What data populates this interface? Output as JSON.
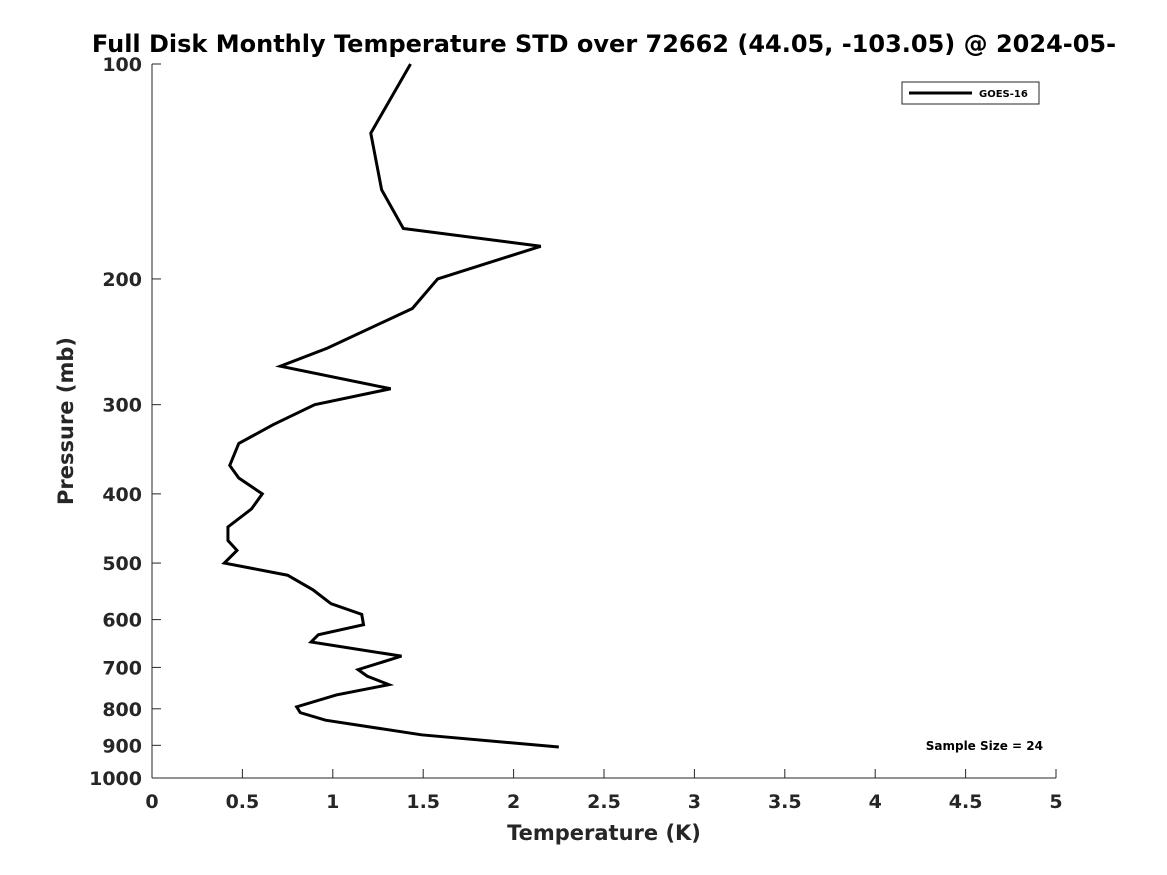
{
  "chart_data": {
    "type": "line",
    "title": "Full Disk Monthly Temperature STD over 72662 (44.05, -103.05) @ 2024-05-",
    "xlabel": "Temperature (K)",
    "ylabel": "Pressure (mb)",
    "xlim": [
      0,
      5
    ],
    "ylim": [
      100,
      1000
    ],
    "y_scale": "log",
    "y_reversed": true,
    "x_ticks": [
      0,
      0.5,
      1,
      1.5,
      2,
      2.5,
      3,
      3.5,
      4,
      4.5,
      5
    ],
    "x_tick_labels": [
      "0",
      "0.5",
      "1",
      "1.5",
      "2",
      "2.5",
      "3",
      "3.5",
      "4",
      "4.5",
      "5"
    ],
    "y_ticks": [
      100,
      200,
      300,
      400,
      500,
      600,
      700,
      800,
      900,
      1000
    ],
    "y_tick_labels": [
      "100",
      "200",
      "300",
      "400",
      "500",
      "600",
      "700",
      "800",
      "900",
      "1000"
    ],
    "grid": false,
    "legend_position": "top-right",
    "series": [
      {
        "name": "GOES-16",
        "color": "#000000",
        "points": [
          {
            "x": 1.43,
            "p": 100
          },
          {
            "x": 1.21,
            "p": 125
          },
          {
            "x": 1.27,
            "p": 150
          },
          {
            "x": 1.39,
            "p": 170
          },
          {
            "x": 2.15,
            "p": 180
          },
          {
            "x": 1.58,
            "p": 200
          },
          {
            "x": 1.44,
            "p": 220
          },
          {
            "x": 0.97,
            "p": 250
          },
          {
            "x": 0.71,
            "p": 265
          },
          {
            "x": 1.32,
            "p": 285
          },
          {
            "x": 0.9,
            "p": 300
          },
          {
            "x": 0.67,
            "p": 320
          },
          {
            "x": 0.48,
            "p": 340
          },
          {
            "x": 0.43,
            "p": 365
          },
          {
            "x": 0.48,
            "p": 380
          },
          {
            "x": 0.61,
            "p": 400
          },
          {
            "x": 0.55,
            "p": 420
          },
          {
            "x": 0.42,
            "p": 445
          },
          {
            "x": 0.42,
            "p": 465
          },
          {
            "x": 0.47,
            "p": 480
          },
          {
            "x": 0.4,
            "p": 500
          },
          {
            "x": 0.75,
            "p": 520
          },
          {
            "x": 0.89,
            "p": 545
          },
          {
            "x": 0.99,
            "p": 570
          },
          {
            "x": 1.16,
            "p": 590
          },
          {
            "x": 1.17,
            "p": 610
          },
          {
            "x": 0.92,
            "p": 630
          },
          {
            "x": 0.88,
            "p": 645
          },
          {
            "x": 1.38,
            "p": 675
          },
          {
            "x": 1.14,
            "p": 705
          },
          {
            "x": 1.19,
            "p": 720
          },
          {
            "x": 1.31,
            "p": 740
          },
          {
            "x": 1.02,
            "p": 765
          },
          {
            "x": 0.8,
            "p": 795
          },
          {
            "x": 0.82,
            "p": 810
          },
          {
            "x": 0.96,
            "p": 830
          },
          {
            "x": 1.49,
            "p": 870
          },
          {
            "x": 2.25,
            "p": 905
          }
        ]
      }
    ],
    "annotations": [
      "Sample Size = 24"
    ]
  }
}
